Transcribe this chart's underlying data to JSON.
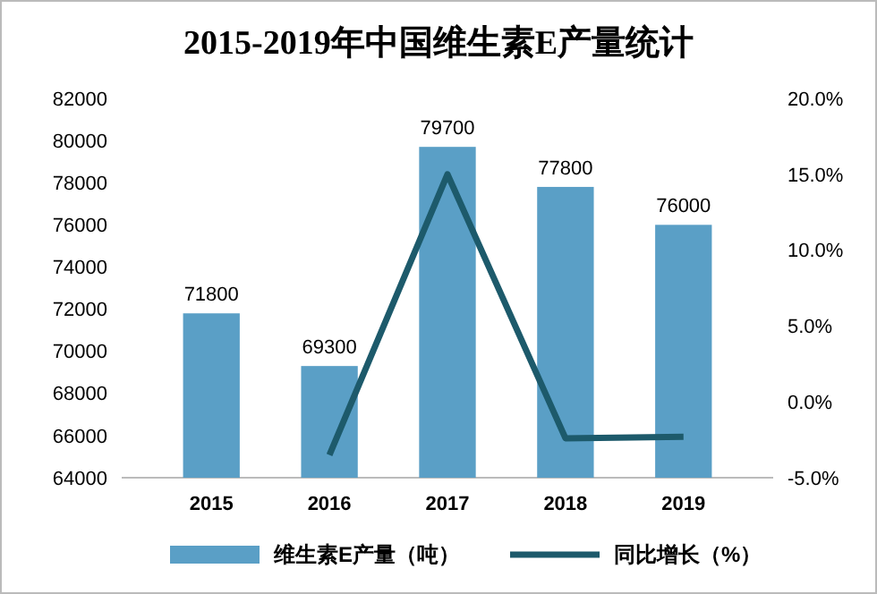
{
  "chart_data": {
    "type": "bar",
    "title": "2015-2019年中国维生素E产量统计",
    "categories": [
      "2015",
      "2016",
      "2017",
      "2018",
      "2019"
    ],
    "series": [
      {
        "name": "维生素E产量（吨）",
        "color": "#5a9fc6",
        "values": [
          71800,
          69300,
          79700,
          77800,
          76000
        ]
      },
      {
        "name": "同比增长（%）",
        "type": "line",
        "axis": "y2",
        "color": "#1d5a6b",
        "values": [
          null,
          -3.5,
          15.0,
          -2.4,
          -2.3
        ]
      }
    ],
    "ylim": [
      64000,
      82000
    ],
    "yticks": [
      64000,
      66000,
      68000,
      70000,
      72000,
      74000,
      76000,
      78000,
      80000,
      82000
    ],
    "y2lim": [
      -5,
      20
    ],
    "y2ticks": [
      {
        "value": -5,
        "label": "-5.0%"
      },
      {
        "value": 0,
        "label": "0.0%"
      },
      {
        "value": 5,
        "label": "5.0%"
      },
      {
        "value": 10,
        "label": "10.0%"
      },
      {
        "value": 15,
        "label": "15.0%"
      },
      {
        "value": 20,
        "label": "20.0%"
      }
    ],
    "value_labels": [
      "71800",
      "69300",
      "79700",
      "77800",
      "76000"
    ],
    "legend": "bottom",
    "marker": "none",
    "line_style": "solid"
  }
}
